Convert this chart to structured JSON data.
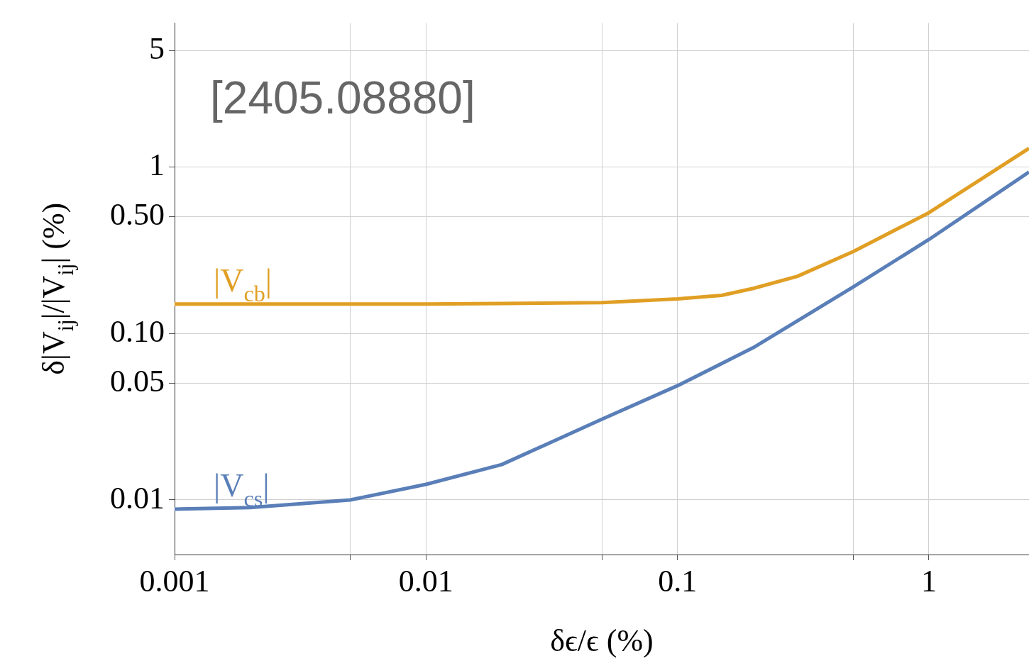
{
  "chart_data": {
    "type": "line",
    "xlabel": "δϵ/ϵ (%)",
    "ylabel": "δ|V$_{ij}$|/|V$_{ij}$| (%)",
    "log": "xy",
    "grid": true,
    "legend": false,
    "marker": "none",
    "line_style": "solid",
    "xlim": [
      0.001,
      2.5
    ],
    "ylim": [
      0.0047,
      7.3
    ],
    "xticks": [
      0.001,
      {
        "value": 0.005,
        "label": null
      },
      0.01,
      {
        "value": 0.05,
        "label": null
      },
      0.1,
      {
        "value": 0.5,
        "label": null
      },
      1
    ],
    "yticks": [
      0.01,
      0.05,
      {
        "value": 0.1,
        "label": "0.10"
      },
      {
        "value": 0.5,
        "label": "0.50"
      },
      1,
      5
    ],
    "annotations": [
      "[2405.08880]"
    ],
    "series": [
      {
        "name": "|V$_{cb}$|",
        "color": "#e09f24",
        "x": [
          0.001,
          0.002,
          0.005,
          0.01,
          0.02,
          0.05,
          0.1,
          0.15,
          0.2,
          0.3,
          0.5,
          1,
          2.5
        ],
        "values": [
          0.15,
          0.15,
          0.15,
          0.15,
          0.151,
          0.153,
          0.161,
          0.169,
          0.186,
          0.22,
          0.31,
          0.53,
          1.29
        ]
      },
      {
        "name": "|V$_{cs}$|",
        "color": "#5a7fb8",
        "x": [
          0.001,
          0.002,
          0.005,
          0.01,
          0.02,
          0.05,
          0.1,
          0.2,
          0.5,
          1,
          2.5
        ],
        "values": [
          0.0088,
          0.009,
          0.01,
          0.0124,
          0.0163,
          0.0305,
          0.0485,
          0.082,
          0.19,
          0.366,
          0.93
        ]
      }
    ]
  }
}
